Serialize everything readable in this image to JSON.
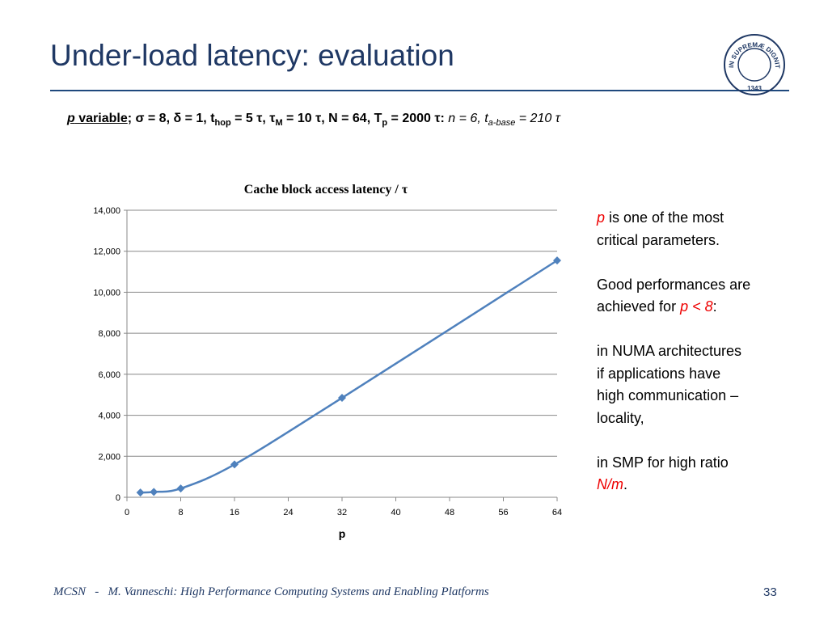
{
  "slide": {
    "title": "Under-load latency: evaluation",
    "subtitle": [
      "p",
      " variable",
      "; σ = 8, δ = 1, t",
      "hop",
      " = 5 τ, τ",
      "M",
      " = 10 τ, N = 64, T",
      "p",
      " = 2000 τ: ",
      "n = 6, t",
      "a-base",
      " = 210 τ"
    ],
    "notes": [
      [
        [
          {
            "text": "p",
            "em": true
          },
          {
            "text": " is one of the most",
            "em": false
          }
        ],
        [
          {
            "text": "critical parameters.",
            "em": false
          }
        ]
      ],
      [
        [
          {
            "text": "Good performances are",
            "em": false
          }
        ],
        [
          {
            "text": "achieved for ",
            "em": false
          },
          {
            "text": "p < 8",
            "em": true
          },
          {
            "text": ":",
            "em": false
          }
        ]
      ],
      [
        [
          {
            "text": "in NUMA architectures",
            "em": false
          }
        ],
        [
          {
            "text": "if applications have",
            "em": false
          }
        ],
        [
          {
            "text": "high communication –",
            "em": false
          }
        ],
        [
          {
            "text": "locality,",
            "em": false
          }
        ]
      ],
      [
        [
          {
            "text": "in SMP for high ratio",
            "em": false
          }
        ],
        [
          {
            "text": "N/m",
            "em": true
          },
          {
            "text": ".",
            "em": false
          }
        ]
      ]
    ],
    "logo": {
      "motto": "IN SUPREMÆ DIGNITATIS",
      "year": "1343"
    },
    "footer": {
      "course": "MCSN",
      "separator": "-",
      "author": "M. Vanneschi: High Performance Computing Systems and Enabling Platforms",
      "page": "33"
    }
  },
  "chart_data": {
    "type": "line",
    "title": "Cache block access latency / τ",
    "x_label": "p",
    "x": [
      2,
      4,
      8,
      16,
      32,
      64
    ],
    "values": [
      230,
      260,
      430,
      1600,
      4850,
      11550
    ],
    "color": "#4f81bd",
    "xlim": [
      0,
      64
    ],
    "xticks": [
      0,
      8,
      16,
      24,
      32,
      40,
      48,
      56,
      64
    ],
    "ylim": [
      0,
      14000
    ],
    "yticks": [
      0,
      {
        "value": 2000,
        "label": "2,000"
      },
      {
        "value": 4000,
        "label": "4,000"
      },
      {
        "value": 6000,
        "label": "6,000"
      },
      {
        "value": 8000,
        "label": "8,000"
      },
      {
        "value": 10000,
        "label": "10,000"
      },
      {
        "value": 12000,
        "label": "12,000"
      },
      {
        "value": 14000,
        "label": "14,000"
      }
    ],
    "grid": true
  }
}
